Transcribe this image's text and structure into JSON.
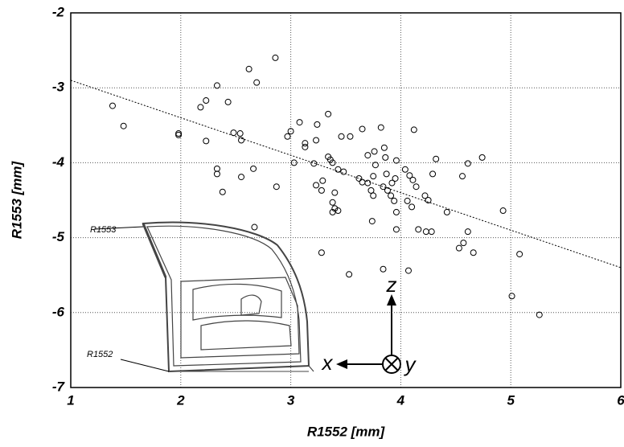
{
  "chart_data": {
    "type": "scatter",
    "xlabel": "R1552 [mm]",
    "ylabel": "R1553 [mm]",
    "xlim": [
      1,
      6
    ],
    "ylim": [
      -7,
      -2
    ],
    "xticks": [
      1,
      2,
      3,
      4,
      5,
      6
    ],
    "yticks": [
      -7,
      -6,
      -5,
      -4,
      -3,
      -2
    ],
    "grid": true,
    "color": "#000000",
    "x": [
      1.38,
      1.48,
      1.98,
      1.98,
      2.18,
      2.23,
      2.33,
      2.43,
      2.62,
      2.69,
      2.86,
      2.23,
      2.48,
      2.54,
      2.55,
      2.33,
      2.33,
      2.38,
      2.55,
      2.66,
      2.87,
      2.67,
      2.97,
      3.0,
      3.08,
      3.03,
      3.13,
      3.13,
      3.23,
      3.24,
      3.21,
      3.23,
      3.28,
      3.29,
      3.34,
      3.34,
      3.28,
      3.36,
      3.38,
      3.43,
      3.48,
      3.4,
      3.38,
      3.4,
      3.38,
      3.43,
      3.46,
      3.54,
      3.53,
      3.62,
      3.65,
      3.65,
      3.7,
      3.7,
      3.73,
      3.75,
      3.75,
      3.74,
      3.77,
      3.76,
      3.82,
      3.85,
      3.86,
      3.87,
      3.84,
      3.88,
      3.92,
      3.91,
      3.94,
      3.95,
      3.96,
      3.96,
      3.96,
      3.84,
      4.04,
      4.06,
      4.07,
      4.1,
      4.08,
      4.11,
      4.14,
      4.12,
      4.16,
      4.22,
      4.25,
      4.28,
      4.23,
      4.29,
      4.32,
      4.42,
      4.56,
      4.53,
      4.57,
      4.61,
      4.61,
      4.66,
      4.74,
      4.93,
      5.01,
      5.08,
      5.26
    ],
    "values": [
      -3.24,
      -3.51,
      -3.61,
      -3.63,
      -3.26,
      -3.17,
      -2.97,
      -3.19,
      -2.75,
      -2.93,
      -2.6,
      -3.71,
      -3.6,
      -3.61,
      -3.7,
      -4.08,
      -4.15,
      -4.39,
      -4.19,
      -4.08,
      -4.32,
      -4.86,
      -3.65,
      -3.58,
      -3.46,
      -4.0,
      -3.74,
      -3.79,
      -3.7,
      -3.49,
      -4.01,
      -4.3,
      -4.37,
      -4.24,
      -3.92,
      -3.35,
      -5.2,
      -3.96,
      -4.0,
      -4.09,
      -4.12,
      -4.4,
      -4.53,
      -4.61,
      -4.66,
      -4.64,
      -3.65,
      -3.65,
      -5.49,
      -4.21,
      -4.26,
      -3.55,
      -3.9,
      -4.27,
      -4.37,
      -4.18,
      -4.44,
      -4.78,
      -4.03,
      -3.85,
      -3.53,
      -3.8,
      -3.93,
      -4.15,
      -4.32,
      -4.37,
      -4.27,
      -4.44,
      -4.51,
      -4.21,
      -3.97,
      -4.66,
      -4.89,
      -5.42,
      -4.09,
      -4.51,
      -5.44,
      -4.59,
      -4.17,
      -4.23,
      -4.32,
      -3.56,
      -4.89,
      -4.44,
      -4.5,
      -4.92,
      -4.92,
      -4.15,
      -3.95,
      -4.66,
      -4.18,
      -5.14,
      -5.07,
      -4.01,
      -4.92,
      -5.2,
      -3.93,
      -4.64,
      -5.78,
      -5.22,
      -6.03
    ],
    "trendline": {
      "x": [
        1,
        6
      ],
      "values": [
        -2.9,
        -5.4
      ]
    },
    "annotations": [
      "R1553",
      "R1552",
      "x",
      "z",
      "y"
    ]
  }
}
